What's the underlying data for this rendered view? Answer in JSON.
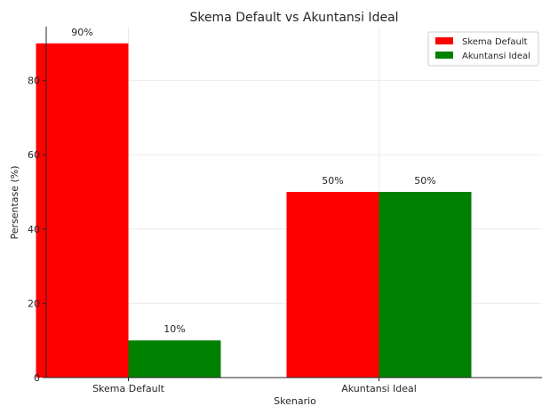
{
  "chart_data": {
    "type": "bar",
    "title": "Skema Default vs Akuntansi Ideal",
    "xlabel": "Skenario",
    "ylabel": "Persentase (%)",
    "categories": [
      "Skema Default",
      "Akuntansi Ideal"
    ],
    "series": [
      {
        "name": "Skema Default",
        "values": [
          90,
          50
        ],
        "labels": [
          "90%",
          "50%"
        ],
        "color": "#ff0000"
      },
      {
        "name": "Akuntansi Ideal",
        "values": [
          10,
          50
        ],
        "labels": [
          "10%",
          "50%"
        ],
        "color": "#008000"
      }
    ],
    "ylim": [
      0,
      94.5
    ],
    "yticks": [
      0,
      20,
      40,
      60,
      80
    ],
    "grid": true,
    "legend_position": "top-right"
  }
}
